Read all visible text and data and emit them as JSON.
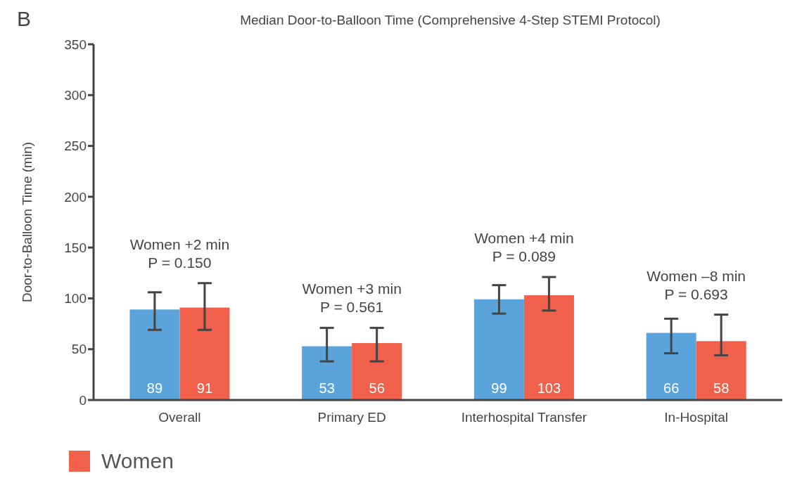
{
  "chart_data": {
    "type": "bar",
    "title": "Median Door-to-Balloon Time (Comprehensive 4-Step STEMI Protocol)",
    "ylabel": "Door-to-Balloon Time (min)",
    "categories": [
      "Overall",
      "Primary ED",
      "Interhospital Transfer",
      "In-Hospital"
    ],
    "series": [
      {
        "color": "#5ba4db",
        "values": [
          89,
          53,
          99,
          66
        ],
        "errors": [
          [
            69,
            106
          ],
          [
            38,
            71
          ],
          [
            85,
            113
          ],
          [
            46,
            80
          ]
        ]
      },
      {
        "name": "Women",
        "color": "#f0604a",
        "values": [
          91,
          56,
          103,
          58
        ],
        "errors": [
          [
            69,
            115
          ],
          [
            38,
            71
          ],
          [
            88,
            121
          ],
          [
            44,
            84
          ]
        ]
      }
    ],
    "ylim": [
      0,
      350
    ],
    "yticks": [
      0,
      50,
      100,
      150,
      200,
      250,
      300,
      350
    ],
    "grid": false,
    "legend": "bottom",
    "data_labels": true,
    "annotations": [
      "B",
      "Women +2 min\nP = 0.150",
      "Women +3 min\nP = 0.561",
      "Women +4 min\nP = 0.089",
      "Women –8 min\nP = 0.693"
    ]
  }
}
